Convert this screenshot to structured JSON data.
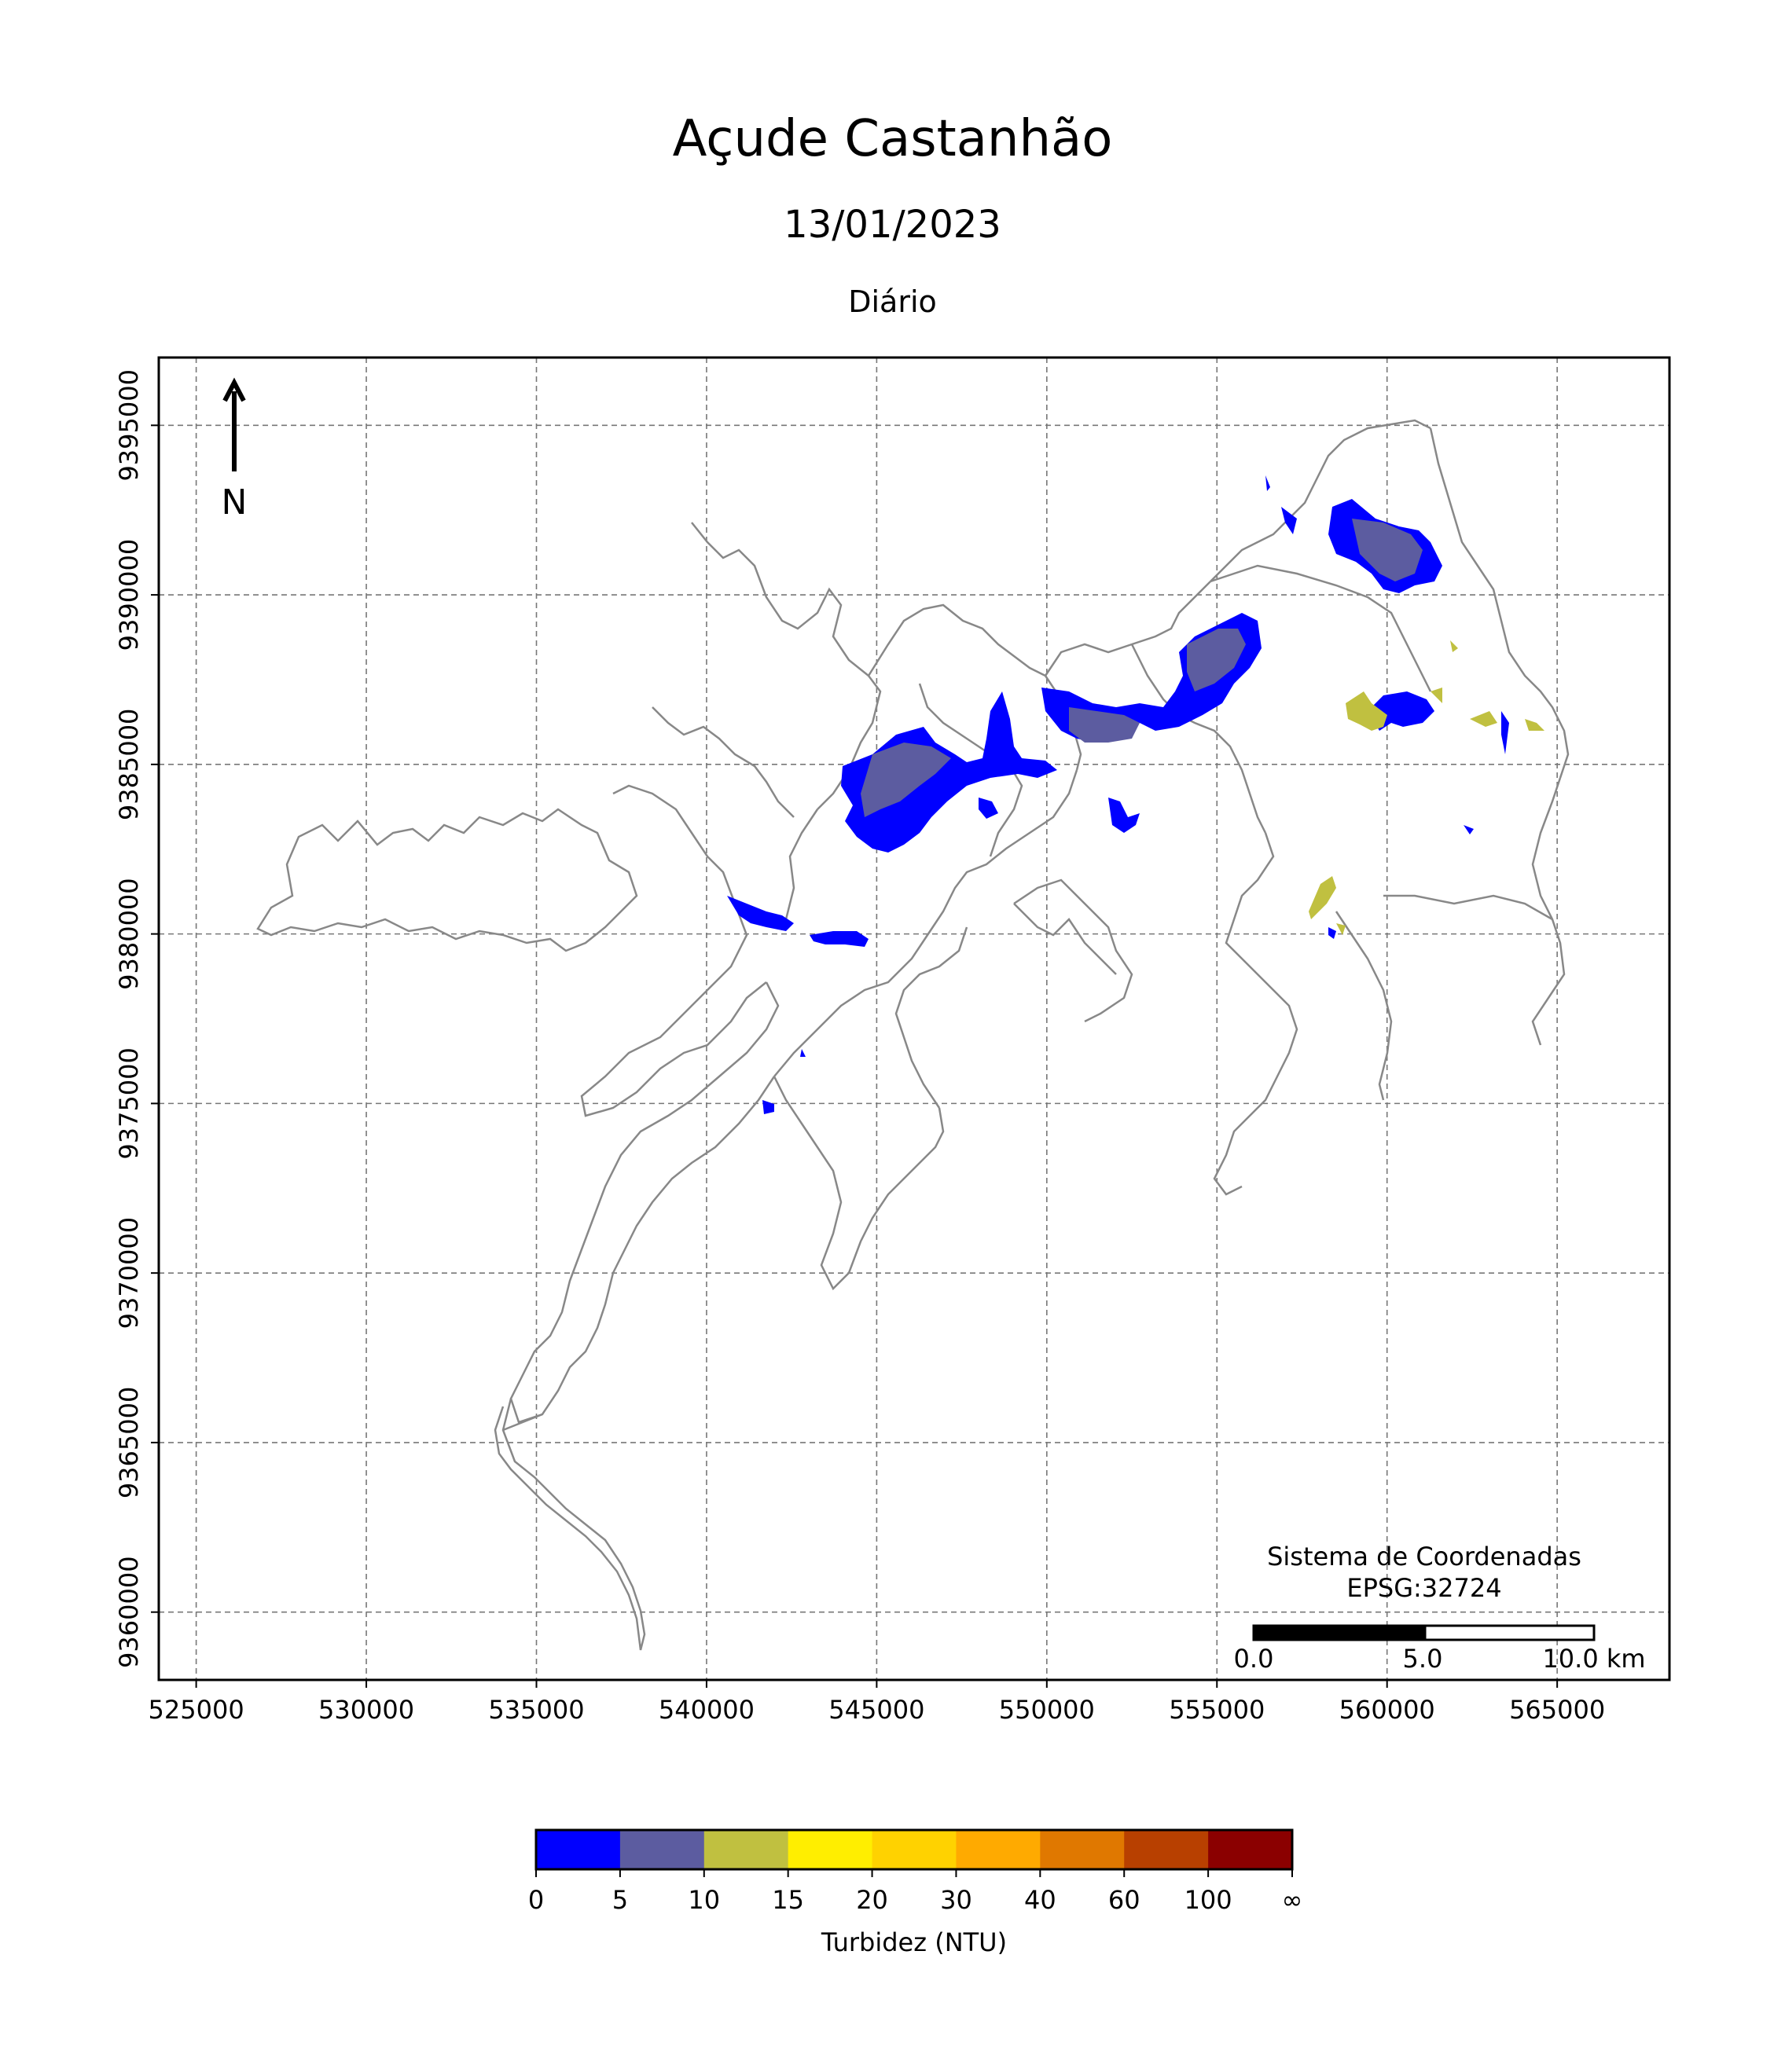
{
  "header": {
    "title": "Açude Castanhão",
    "date": "13/01/2023",
    "period": "Diário"
  },
  "map": {
    "x_ticks": [
      "525000",
      "530000",
      "535000",
      "540000",
      "545000",
      "550000",
      "555000",
      "560000",
      "565000"
    ],
    "y_ticks": [
      "9395000",
      "9390000",
      "9385000",
      "9380000",
      "9375000",
      "9370000",
      "9365000",
      "9360000"
    ],
    "x_range": [
      523900,
      568300
    ],
    "y_range": [
      9358000,
      9397000
    ],
    "grid": true,
    "north_label": "N",
    "crs_label_line1": "Sistema de Coordenadas",
    "crs_label_line2": "EPSG:32724",
    "scale_labels": [
      "0.0",
      "5.0",
      "10.0 km"
    ]
  },
  "colorbar": {
    "label": "Turbidez (NTU)",
    "boundaries": [
      "0",
      "5",
      "10",
      "15",
      "20",
      "30",
      "40",
      "60",
      "100",
      "∞"
    ],
    "colors": [
      "#0000ff",
      "#5c5ca0",
      "#c0c040",
      "#ffee00",
      "#ffd200",
      "#ffaa00",
      "#e07800",
      "#b84000",
      "#8b0000"
    ]
  },
  "legend_colors": {
    "outline": "#888888",
    "grid": "#777777"
  }
}
